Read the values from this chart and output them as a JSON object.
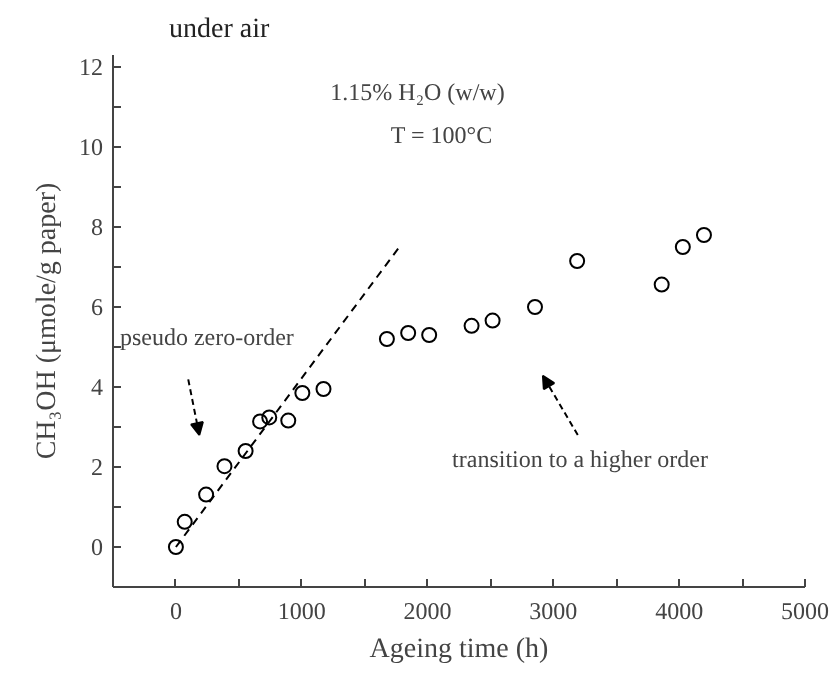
{
  "chart_data": {
    "type": "scatter",
    "xlabel": "Ageing time (h)",
    "ylabel": "CH₃OH (μmole/g paper)",
    "title": "under air",
    "annotations": [
      "1.15% H₂O (w/w)",
      "T = 100°C",
      "pseudo zero-order",
      "transition to a higher order"
    ],
    "series": [
      {
        "marker": "circle",
        "color": "#000000",
        "x": [
          0,
          70,
          240,
          386,
          554,
          669,
          742,
          893,
          1005,
          1173,
          1677,
          1846,
          2013,
          2350,
          2517,
          2854,
          3189,
          3861,
          4029,
          4197
        ],
        "values": [
          0,
          0.63,
          1.31,
          2.02,
          2.4,
          3.14,
          3.24,
          3.16,
          3.85,
          3.95,
          5.2,
          5.35,
          5.3,
          5.53,
          5.66,
          6.0,
          7.15,
          6.56,
          7.5,
          7.8
        ]
      },
      {
        "type": "line",
        "line_style": "dashed",
        "color": "#000000",
        "x": [
          0,
          1790
        ],
        "values": [
          0,
          7.56
        ]
      }
    ],
    "xlim": [
      -500,
      5000
    ],
    "ylim": [
      -1,
      12.3
    ],
    "xticks": [
      0,
      {
        "value": 500,
        "label": null
      },
      1000,
      {
        "value": 1500,
        "label": null
      },
      2000,
      {
        "value": 2500,
        "label": null
      },
      3000,
      {
        "value": 3500,
        "label": null
      },
      4000,
      {
        "value": 4500,
        "label": null
      },
      5000
    ],
    "yticks": [
      0,
      {
        "value": 1,
        "label": null
      },
      2,
      {
        "value": 3,
        "label": null
      },
      4,
      {
        "value": 5,
        "label": null
      },
      6,
      {
        "value": 7,
        "label": null
      },
      8,
      {
        "value": 9,
        "label": null
      },
      10,
      {
        "value": 11,
        "label": null
      },
      12
    ],
    "grid": false
  }
}
